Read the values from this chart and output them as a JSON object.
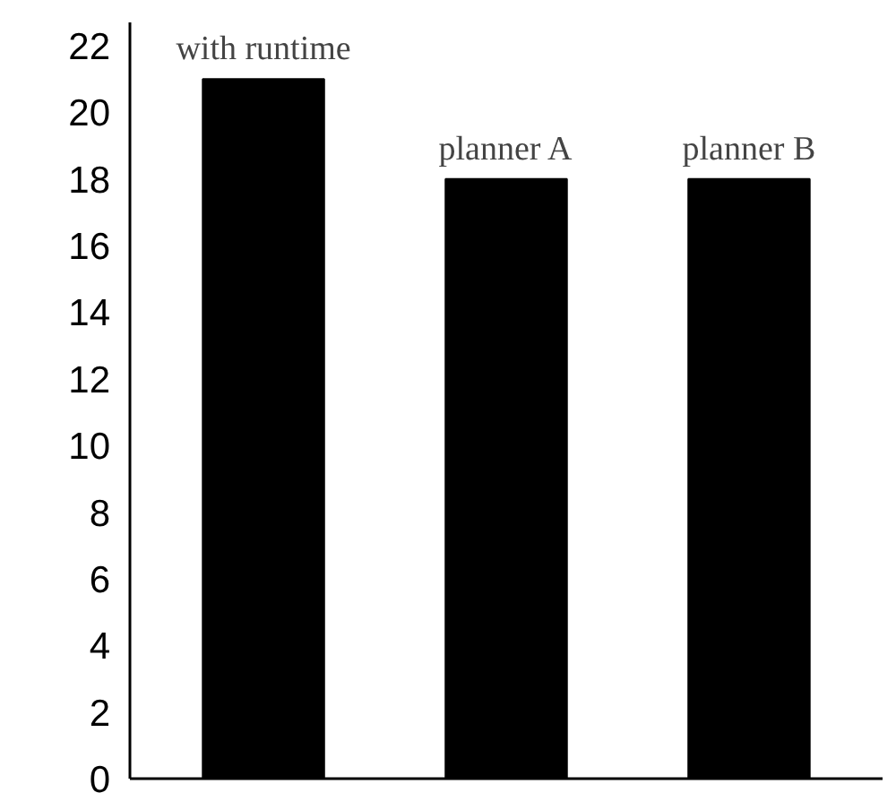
{
  "chart_data": {
    "type": "bar",
    "categories": [
      "with runtime",
      "planner A",
      "planner B"
    ],
    "values": [
      21,
      18,
      18
    ],
    "color": "#000000",
    "ylim": [
      0,
      22.7
    ],
    "yticks": [
      0,
      2,
      4,
      6,
      8,
      10,
      12,
      14,
      16,
      18,
      20,
      22
    ],
    "grid": false,
    "tick_labels": "y"
  }
}
